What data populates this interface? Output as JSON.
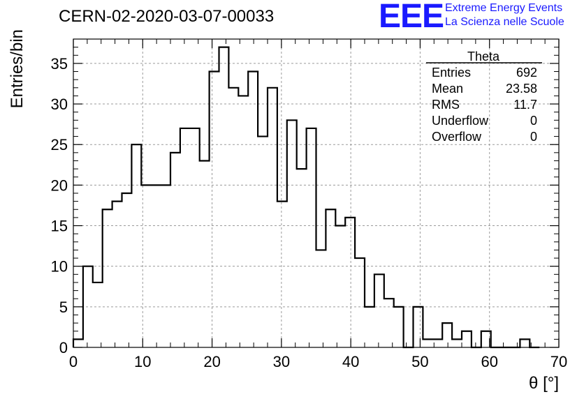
{
  "header": {
    "run_title": "CERN-02-2020-03-07-00033",
    "logo_text": "EEE",
    "logo_line1": "Extreme Energy Events",
    "logo_line2": "La Scienza nelle Scuole",
    "logo_color": "#1a1aff"
  },
  "stats_box": {
    "title": "Theta",
    "rows": [
      {
        "label": "Entries",
        "value": "692"
      },
      {
        "label": "Mean",
        "value": "23.58"
      },
      {
        "label": "RMS",
        "value": "11.7"
      },
      {
        "label": "Underflow",
        "value": "0"
      },
      {
        "label": "Overflow",
        "value": "0"
      }
    ]
  },
  "chart_data": {
    "type": "histogram",
    "xlabel": "θ [°]",
    "ylabel": "Entries/bin",
    "xlim": [
      0,
      70
    ],
    "ylim": [
      0,
      38
    ],
    "bin_width": 1.4,
    "bin_start": 0,
    "x_ticks": [
      0,
      10,
      20,
      30,
      40,
      50,
      60,
      70
    ],
    "y_ticks": [
      0,
      5,
      10,
      15,
      20,
      25,
      30,
      35
    ],
    "grid": true,
    "line_color": "#000000",
    "values": [
      1,
      10,
      8,
      17,
      18,
      19,
      25,
      20,
      20,
      20,
      24,
      27,
      27,
      23,
      34,
      37,
      32,
      31,
      34,
      26,
      32,
      18,
      28,
      22,
      27,
      12,
      17,
      15,
      16,
      11,
      5,
      9,
      6,
      5,
      0,
      5,
      1,
      1,
      3,
      1,
      2,
      0,
      2,
      0,
      0,
      0,
      1,
      0
    ]
  }
}
